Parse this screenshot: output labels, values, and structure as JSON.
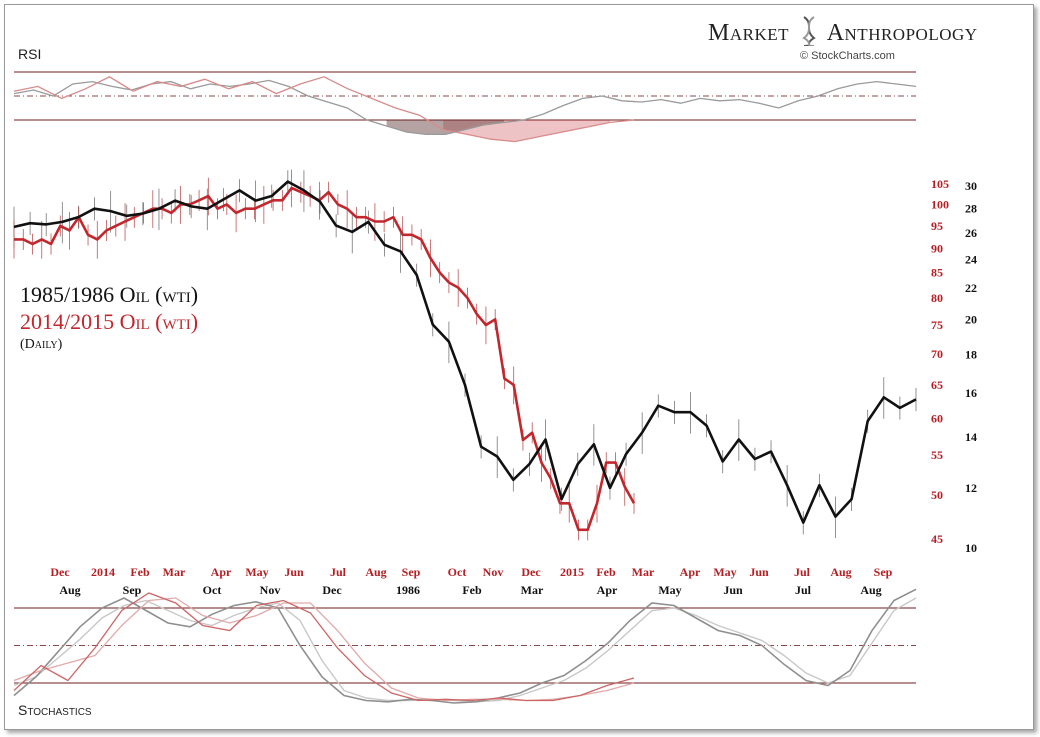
{
  "header": {
    "brand_left": "Market",
    "brand_right": "Anthropology",
    "credit": "© StockCharts.com"
  },
  "panels": {
    "rsi_label": "RSI",
    "stoch_label": "Stochastics"
  },
  "legend": {
    "line1": "1985/1986 Oil (wti)",
    "line2": "2014/2015 Oil (wti)",
    "line3": "(Daily)"
  },
  "colors": {
    "series_2014": "#c1272d",
    "series_1985": "#111111",
    "band_lines": "#8a4a4a"
  },
  "chart_data": [
    {
      "type": "line",
      "panel": "RSI",
      "bands": [
        70,
        50,
        30
      ],
      "ylim": [
        0,
        100
      ],
      "series": [
        {
          "values": [
            52,
            55,
            50,
            60,
            62,
            58,
            55,
            60,
            62,
            56,
            60,
            58,
            60,
            63,
            58,
            50,
            45,
            40,
            30,
            25,
            20,
            18,
            18,
            22,
            26,
            28,
            30,
            35,
            42,
            48,
            50,
            46,
            45,
            47,
            44,
            48,
            46,
            47,
            44,
            40,
            46,
            50,
            56,
            60,
            62,
            60,
            58
          ]
        },
        {
          "values": [
            54,
            58,
            48,
            56,
            66,
            54,
            62,
            58,
            64,
            56,
            62,
            52,
            60,
            66,
            56,
            48,
            40,
            34,
            22,
            18,
            14,
            12,
            16,
            20,
            24,
            28,
            30
          ]
        }
      ]
    },
    {
      "type": "line",
      "panel": "Price",
      "x_labels_2014": [
        "Dec",
        "2014",
        "Feb",
        "Mar",
        "Apr",
        "May",
        "Jun",
        "Jul",
        "Aug",
        "Sep",
        "Oct",
        "Nov",
        "Dec",
        "2015",
        "Feb",
        "Mar",
        "Apr",
        "May",
        "Jun",
        "Jul",
        "Aug",
        "Sep"
      ],
      "x_labels_1985": [
        "Aug",
        "Sep",
        "Oct",
        "Nov",
        "Dec",
        "1986",
        "Feb",
        "Mar",
        "Apr",
        "May",
        "Jun",
        "Jul",
        "Aug"
      ],
      "y_ticks_2014": [
        105,
        100,
        95,
        90,
        85,
        80,
        75,
        70,
        65,
        60,
        55,
        50,
        45
      ],
      "y_ticks_1985": [
        30,
        28,
        26,
        24,
        22,
        20,
        18,
        16,
        14,
        12,
        10
      ],
      "ylim_1985": [
        10,
        30
      ],
      "series": [
        {
          "name": "1985/1986 Oil (wti)",
          "values": [
            26.5,
            26.8,
            26.7,
            26.9,
            27.3,
            28.0,
            27.8,
            27.4,
            27.6,
            28.0,
            28.7,
            28.2,
            28.0,
            28.8,
            29.6,
            28.7,
            29.1,
            30.4,
            29.6,
            28.6,
            26.6,
            26.1,
            26.9,
            25.1,
            24.6,
            22.9,
            19.7,
            18.7,
            16.4,
            13.6,
            13.2,
            12.3,
            12.9,
            13.9,
            11.6,
            12.9,
            13.7,
            12.0,
            13.3,
            14.2,
            15.4,
            15.1,
            15.1,
            14.5,
            13.0,
            13.9,
            13.1,
            13.4,
            12.1,
            10.8,
            12.1,
            11.0,
            11.6,
            14.7,
            15.8,
            15.3,
            15.7
          ]
        },
        {
          "name": "2014/2015 Oil (wti)",
          "values": [
            92,
            92,
            91,
            92,
            91,
            95,
            94,
            97,
            93,
            92,
            94,
            95,
            96,
            97,
            98,
            99,
            99,
            98,
            100,
            100,
            101,
            102,
            99,
            100,
            98,
            99,
            99,
            100,
            101,
            101,
            104,
            103,
            102,
            101,
            103,
            100,
            99,
            97,
            97,
            96,
            96,
            97,
            93,
            93,
            92,
            88,
            85,
            83,
            82,
            80,
            77,
            75,
            76,
            66,
            65,
            57,
            58,
            54,
            52,
            49,
            49,
            46,
            46,
            49,
            54,
            54,
            51,
            49
          ]
        }
      ]
    },
    {
      "type": "line",
      "panel": "Stochastics",
      "bands": [
        80,
        50,
        20
      ],
      "ylim": [
        0,
        100
      ],
      "series": [
        {
          "values": [
            10,
            25,
            45,
            65,
            80,
            88,
            78,
            68,
            65,
            75,
            82,
            85,
            80,
            50,
            25,
            10,
            6,
            5,
            7,
            6,
            4,
            5,
            8,
            12,
            20,
            26,
            38,
            52,
            70,
            84,
            82,
            72,
            62,
            58,
            50,
            35,
            22,
            18,
            30,
            62,
            86,
            95
          ]
        },
        {
          "values": [
            18,
            25,
            40,
            55,
            72,
            82,
            86,
            78,
            70,
            66,
            74,
            80,
            84,
            70,
            38,
            14,
            8,
            6,
            6,
            7,
            6,
            5,
            6,
            10,
            16,
            22,
            32,
            46,
            62,
            78,
            80,
            74,
            66,
            60,
            54,
            42,
            28,
            20,
            26,
            52,
            78,
            88
          ]
        },
        {
          "values": [
            14,
            34,
            22,
            48,
            78,
            92,
            84,
            66,
            62,
            82,
            86,
            76,
            48,
            26,
            12,
            6,
            7,
            6,
            8,
            6,
            6,
            10,
            18,
            24
          ]
        },
        {
          "values": [
            22,
            30,
            36,
            42,
            66,
            86,
            88,
            74,
            68,
            74,
            84,
            84,
            62,
            36,
            16,
            8,
            6,
            7,
            7,
            6,
            7,
            10,
            14,
            20
          ]
        }
      ]
    }
  ]
}
